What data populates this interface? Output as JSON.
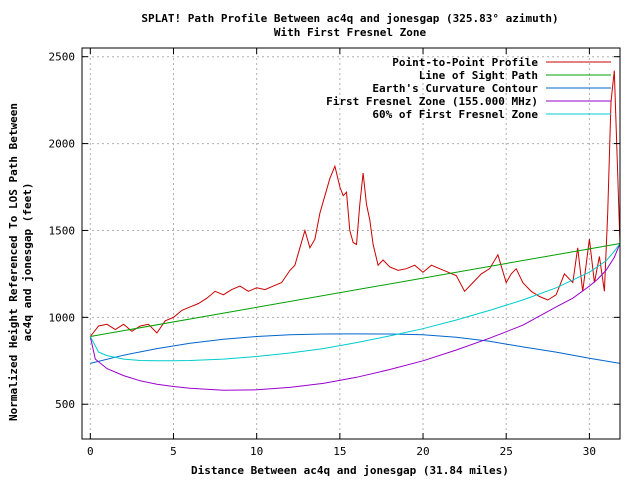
{
  "chart_data": {
    "type": "line",
    "title": "SPLAT! Path Profile Between ac4q and jonesgap (325.83° azimuth)",
    "subtitle": "With First Fresnel Zone",
    "xlabel": "Distance Between ac4q and jonesgap (31.84 miles)",
    "ylabel_line1": "Normalized Height Referenced To LOS Path Between",
    "ylabel_line2": "ac4q and jonesgap (feet)",
    "xlim": [
      -0.5,
      31.84
    ],
    "ylim": [
      300,
      2550
    ],
    "x_ticks": [
      0,
      5,
      10,
      15,
      20,
      25,
      30
    ],
    "x_tick_labels": [
      "0",
      "5",
      "10",
      "15",
      "20",
      "25",
      "30"
    ],
    "y_ticks": [
      500,
      1000,
      1500,
      2000,
      2500
    ],
    "y_tick_labels": [
      "500",
      "1000",
      "1500",
      "2000",
      "2500"
    ],
    "grid": true,
    "legend_position": "top-right",
    "series": [
      {
        "name": "Point-to-Point Profile",
        "color": "#cc0000",
        "x": [
          0,
          0.5,
          1,
          1.5,
          2,
          2.5,
          3,
          3.5,
          4,
          4.5,
          5,
          5.5,
          6,
          6.5,
          7,
          7.5,
          8,
          8.5,
          9,
          9.5,
          10,
          10.5,
          11,
          11.5,
          12,
          12.3,
          12.6,
          12.9,
          13.2,
          13.5,
          13.8,
          14.1,
          14.4,
          14.7,
          15.0,
          15.2,
          15.4,
          15.6,
          15.8,
          16.0,
          16.2,
          16.4,
          16.6,
          16.8,
          17.0,
          17.3,
          17.6,
          18.0,
          18.5,
          19.0,
          19.5,
          20.0,
          20.5,
          21.0,
          21.5,
          22.0,
          22.5,
          23.0,
          23.5,
          24.0,
          24.5,
          25.0,
          25.3,
          25.6,
          26.0,
          26.5,
          27.0,
          27.5,
          28.0,
          28.5,
          29.0,
          29.3,
          29.6,
          30.0,
          30.3,
          30.6,
          30.9,
          31.1,
          31.3,
          31.5,
          31.84
        ],
        "y": [
          890,
          950,
          960,
          930,
          960,
          920,
          950,
          960,
          910,
          980,
          1000,
          1040,
          1060,
          1080,
          1110,
          1150,
          1130,
          1160,
          1180,
          1150,
          1170,
          1160,
          1180,
          1200,
          1270,
          1300,
          1400,
          1500,
          1400,
          1450,
          1600,
          1700,
          1800,
          1870,
          1750,
          1700,
          1720,
          1500,
          1430,
          1420,
          1650,
          1830,
          1650,
          1560,
          1420,
          1300,
          1330,
          1290,
          1270,
          1280,
          1300,
          1260,
          1300,
          1280,
          1260,
          1240,
          1150,
          1200,
          1250,
          1280,
          1360,
          1200,
          1250,
          1280,
          1200,
          1150,
          1120,
          1100,
          1130,
          1250,
          1200,
          1400,
          1150,
          1450,
          1200,
          1350,
          1150,
          1600,
          2240,
          2420,
          1420
        ]
      },
      {
        "name": "Line of Sight Path",
        "color": "#00a000",
        "x": [
          0,
          31.84
        ],
        "y": [
          890,
          1425
        ]
      },
      {
        "name": "Earth's Curvature Contour",
        "color": "#0066cc",
        "x": [
          0,
          2,
          4,
          6,
          8,
          10,
          12,
          14,
          15.92,
          18,
          20,
          22,
          24,
          26,
          28,
          30,
          31.84
        ],
        "y": [
          735,
          782,
          820,
          851,
          874,
          890,
          900,
          904,
          905,
          904,
          900,
          886,
          862,
          830,
          800,
          765,
          735
        ]
      },
      {
        "name": "First Fresnel Zone (155.000 MHz)",
        "color": "#9900cc",
        "x": [
          0,
          0.3,
          1,
          2,
          3,
          4,
          5,
          6,
          8,
          10,
          12,
          14,
          16,
          18,
          20,
          22,
          24,
          26,
          28,
          29,
          30,
          30.5,
          31,
          31.5,
          31.84
        ],
        "y": [
          890,
          760,
          705,
          665,
          635,
          615,
          602,
          592,
          580,
          583,
          597,
          620,
          655,
          700,
          750,
          812,
          880,
          955,
          1060,
          1110,
          1180,
          1220,
          1270,
          1345,
          1425
        ]
      },
      {
        "name": "60% of First Fresnel Zone",
        "color": "#00cccc",
        "x": [
          0,
          0.5,
          1,
          2,
          3,
          4,
          5,
          6,
          8,
          10,
          12,
          14,
          16,
          18,
          20,
          22,
          24,
          26,
          28,
          30,
          31,
          31.5,
          31.84
        ],
        "y": [
          890,
          800,
          780,
          760,
          752,
          750,
          750,
          752,
          760,
          775,
          795,
          820,
          855,
          893,
          935,
          985,
          1040,
          1100,
          1170,
          1260,
          1325,
          1380,
          1425
        ]
      }
    ]
  }
}
